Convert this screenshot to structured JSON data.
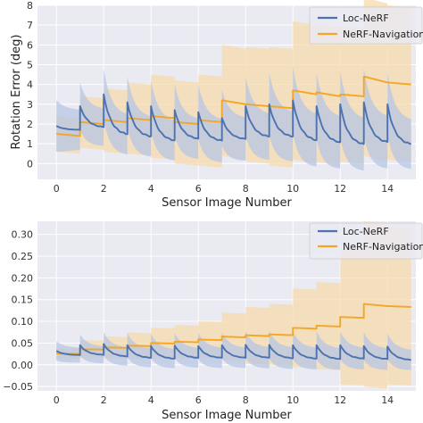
{
  "colors": {
    "panel_bg": "#eaeaf2",
    "grid": "#ffffff",
    "loc": "#4c72b0",
    "nav": "#f5a623",
    "loc_band": "#b7c6e4",
    "nav_band": "#f7d9a6"
  },
  "chart_data": [
    {
      "type": "line",
      "xlabel": "Sensor Image Number",
      "ylabel": "Rotation Error (deg)",
      "xlim": [
        -0.8,
        15.2
      ],
      "ylim": [
        -0.8,
        8
      ],
      "xticks": [
        "0",
        "2",
        "4",
        "6",
        "8",
        "10",
        "12",
        "14"
      ],
      "yticks": [
        "0",
        "1",
        "2",
        "3",
        "4",
        "5",
        "6",
        "7",
        "8"
      ],
      "grid": true,
      "legend_position": "top-right",
      "series": [
        {
          "name": "Loc-NeRF",
          "style": "sawtooth",
          "steps": [
            {
              "x0": 0.0,
              "x1": 1.0,
              "peak": 1.9,
              "end": 1.7,
              "band": 1.3
            },
            {
              "x0": 1.0,
              "x1": 2.0,
              "peak": 2.9,
              "end": 1.8,
              "band": 1.2
            },
            {
              "x0": 2.0,
              "x1": 3.0,
              "peak": 3.5,
              "end": 1.4,
              "band": 1.3
            },
            {
              "x0": 3.0,
              "x1": 4.0,
              "peak": 3.1,
              "end": 1.3,
              "band": 1.3
            },
            {
              "x0": 4.0,
              "x1": 5.0,
              "peak": 2.9,
              "end": 1.1,
              "band": 1.3
            },
            {
              "x0": 5.0,
              "x1": 6.0,
              "peak": 2.7,
              "end": 1.2,
              "band": 1.3
            },
            {
              "x0": 6.0,
              "x1": 7.0,
              "peak": 2.6,
              "end": 1.1,
              "band": 1.4
            },
            {
              "x0": 7.0,
              "x1": 8.0,
              "peak": 2.3,
              "end": 1.2,
              "band": 1.4
            },
            {
              "x0": 8.0,
              "x1": 9.0,
              "peak": 2.9,
              "end": 1.3,
              "band": 1.5
            },
            {
              "x0": 9.0,
              "x1": 10.0,
              "peak": 3.0,
              "end": 1.3,
              "band": 1.6
            },
            {
              "x0": 10.0,
              "x1": 11.0,
              "peak": 3.2,
              "end": 1.1,
              "band": 1.7
            },
            {
              "x0": 11.0,
              "x1": 12.0,
              "peak": 2.9,
              "end": 1.0,
              "band": 1.7
            },
            {
              "x0": 12.0,
              "x1": 13.0,
              "peak": 3.0,
              "end": 0.9,
              "band": 1.7
            },
            {
              "x0": 13.0,
              "x1": 14.0,
              "peak": 3.1,
              "end": 1.0,
              "band": 1.7
            },
            {
              "x0": 14.0,
              "x1": 15.0,
              "peak": 3.0,
              "end": 0.9,
              "band": 1.6
            }
          ]
        },
        {
          "name": "NeRF-Navigation",
          "style": "step",
          "steps": [
            {
              "x0": 0.0,
              "x1": 1.0,
              "peak": 1.5,
              "end": 1.4,
              "band": 0.9
            },
            {
              "x0": 1.0,
              "x1": 2.0,
              "peak": 2.1,
              "end": 2.0,
              "band": 1.3
            },
            {
              "x0": 2.0,
              "x1": 3.0,
              "peak": 2.2,
              "end": 2.1,
              "band": 1.6
            },
            {
              "x0": 3.0,
              "x1": 4.0,
              "peak": 2.3,
              "end": 2.2,
              "band": 1.8
            },
            {
              "x0": 4.0,
              "x1": 5.0,
              "peak": 2.4,
              "end": 2.3,
              "band": 2.1
            },
            {
              "x0": 5.0,
              "x1": 6.0,
              "peak": 2.1,
              "end": 2.0,
              "band": 2.1
            },
            {
              "x0": 6.0,
              "x1": 7.0,
              "peak": 2.2,
              "end": 2.1,
              "band": 2.3
            },
            {
              "x0": 7.0,
              "x1": 8.0,
              "peak": 3.2,
              "end": 3.0,
              "band": 2.8
            },
            {
              "x0": 8.0,
              "x1": 9.0,
              "peak": 3.0,
              "end": 2.9,
              "band": 2.9
            },
            {
              "x0": 9.0,
              "x1": 10.0,
              "peak": 2.9,
              "end": 2.8,
              "band": 3.0
            },
            {
              "x0": 10.0,
              "x1": 11.0,
              "peak": 3.7,
              "end": 3.5,
              "band": 3.5
            },
            {
              "x0": 11.0,
              "x1": 12.0,
              "peak": 3.6,
              "end": 3.4,
              "band": 3.5
            },
            {
              "x0": 12.0,
              "x1": 13.0,
              "peak": 3.5,
              "end": 3.4,
              "band": 3.4
            },
            {
              "x0": 13.0,
              "x1": 14.0,
              "peak": 4.4,
              "end": 4.1,
              "band": 4.0
            },
            {
              "x0": 14.0,
              "x1": 15.0,
              "peak": 4.1,
              "end": 4.0,
              "band": 3.9
            }
          ]
        }
      ]
    },
    {
      "type": "line",
      "xlabel": "Sensor Image Number",
      "ylabel": "",
      "xlim": [
        -0.8,
        15.2
      ],
      "ylim": [
        -0.06,
        0.33
      ],
      "xticks": [
        "0",
        "2",
        "4",
        "6",
        "8",
        "10",
        "12",
        "14"
      ],
      "yticks": [
        "−0.05",
        "0.00",
        "0.05",
        "0.10",
        "0.15",
        "0.20",
        "0.25",
        "0.30"
      ],
      "grid": true,
      "legend_position": "top-right",
      "series": [
        {
          "name": "Loc-NeRF",
          "style": "sawtooth",
          "steps": [
            {
              "x0": 0.0,
              "x1": 1.0,
              "peak": 0.032,
              "end": 0.022,
              "band": 0.022
            },
            {
              "x0": 1.0,
              "x1": 2.0,
              "peak": 0.045,
              "end": 0.022,
              "band": 0.025
            },
            {
              "x0": 2.0,
              "x1": 3.0,
              "peak": 0.048,
              "end": 0.018,
              "band": 0.027
            },
            {
              "x0": 3.0,
              "x1": 4.0,
              "peak": 0.045,
              "end": 0.015,
              "band": 0.028
            },
            {
              "x0": 4.0,
              "x1": 5.0,
              "peak": 0.043,
              "end": 0.013,
              "band": 0.028
            },
            {
              "x0": 5.0,
              "x1": 6.0,
              "peak": 0.044,
              "end": 0.015,
              "band": 0.029
            },
            {
              "x0": 6.0,
              "x1": 7.0,
              "peak": 0.043,
              "end": 0.015,
              "band": 0.03
            },
            {
              "x0": 7.0,
              "x1": 8.0,
              "peak": 0.045,
              "end": 0.015,
              "band": 0.03
            },
            {
              "x0": 8.0,
              "x1": 9.0,
              "peak": 0.046,
              "end": 0.015,
              "band": 0.031
            },
            {
              "x0": 9.0,
              "x1": 10.0,
              "peak": 0.046,
              "end": 0.014,
              "band": 0.032
            },
            {
              "x0": 10.0,
              "x1": 11.0,
              "peak": 0.045,
              "end": 0.013,
              "band": 0.032
            },
            {
              "x0": 11.0,
              "x1": 12.0,
              "peak": 0.045,
              "end": 0.012,
              "band": 0.032
            },
            {
              "x0": 12.0,
              "x1": 13.0,
              "peak": 0.045,
              "end": 0.013,
              "band": 0.032
            },
            {
              "x0": 13.0,
              "x1": 14.0,
              "peak": 0.043,
              "end": 0.012,
              "band": 0.032
            },
            {
              "x0": 14.0,
              "x1": 15.0,
              "peak": 0.042,
              "end": 0.01,
              "band": 0.03
            }
          ]
        },
        {
          "name": "NeRF-Navigation",
          "style": "step",
          "steps": [
            {
              "x0": 0.0,
              "x1": 1.0,
              "peak": 0.026,
              "end": 0.025,
              "band": 0.012
            },
            {
              "x0": 1.0,
              "x1": 2.0,
              "peak": 0.036,
              "end": 0.035,
              "band": 0.02
            },
            {
              "x0": 2.0,
              "x1": 3.0,
              "peak": 0.04,
              "end": 0.039,
              "band": 0.025
            },
            {
              "x0": 3.0,
              "x1": 4.0,
              "peak": 0.044,
              "end": 0.043,
              "band": 0.03
            },
            {
              "x0": 4.0,
              "x1": 5.0,
              "peak": 0.05,
              "end": 0.049,
              "band": 0.035
            },
            {
              "x0": 5.0,
              "x1": 6.0,
              "peak": 0.053,
              "end": 0.052,
              "band": 0.038
            },
            {
              "x0": 6.0,
              "x1": 7.0,
              "peak": 0.058,
              "end": 0.057,
              "band": 0.042
            },
            {
              "x0": 7.0,
              "x1": 8.0,
              "peak": 0.065,
              "end": 0.063,
              "band": 0.055
            },
            {
              "x0": 8.0,
              "x1": 9.0,
              "peak": 0.068,
              "end": 0.066,
              "band": 0.065
            },
            {
              "x0": 9.0,
              "x1": 10.0,
              "peak": 0.07,
              "end": 0.068,
              "band": 0.07
            },
            {
              "x0": 10.0,
              "x1": 11.0,
              "peak": 0.085,
              "end": 0.083,
              "band": 0.09
            },
            {
              "x0": 11.0,
              "x1": 12.0,
              "peak": 0.09,
              "end": 0.088,
              "band": 0.1
            },
            {
              "x0": 12.0,
              "x1": 13.0,
              "peak": 0.11,
              "end": 0.108,
              "band": 0.155
            },
            {
              "x0": 13.0,
              "x1": 14.0,
              "peak": 0.14,
              "end": 0.135,
              "band": 0.19
            },
            {
              "x0": 14.0,
              "x1": 15.0,
              "peak": 0.135,
              "end": 0.133,
              "band": 0.18
            }
          ]
        }
      ]
    }
  ]
}
